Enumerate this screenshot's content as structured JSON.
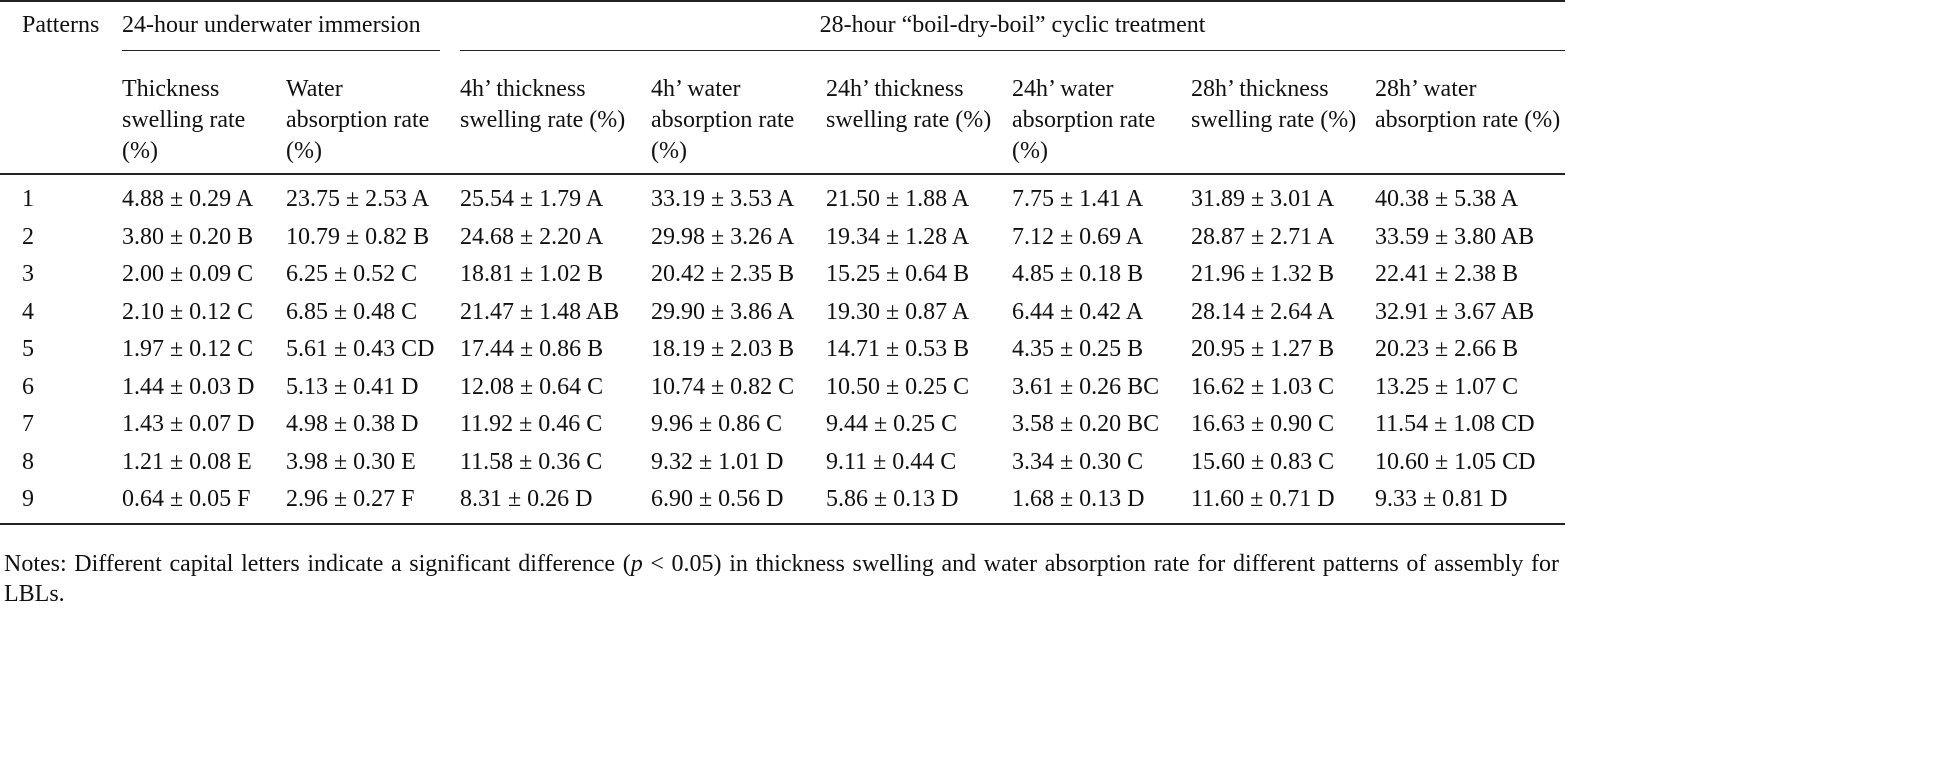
{
  "header": {
    "patterns": "Patterns",
    "groups": [
      "24-hour underwater immersion",
      "28-hour “boil-dry-boil” cyclic treatment"
    ],
    "columns": [
      "Thickness swelling rate (%)",
      "Water absorption rate (%)",
      "4h’ thickness swelling rate (%)",
      "4h’ water absorption rate (%)",
      "24h’ thickness swelling rate (%)",
      "24h’ water absorption rate (%)",
      "28h’ thickness swelling rate (%)",
      "28h’ water absorption rate (%)"
    ]
  },
  "table": {
    "rows": [
      [
        "1",
        "4.88 ± 0.29 A",
        "23.75 ± 2.53 A",
        "25.54 ± 1.79 A",
        "33.19 ± 3.53 A",
        "21.50 ± 1.88 A",
        "7.75 ± 1.41 A",
        "31.89 ± 3.01 A",
        "40.38 ± 5.38 A"
      ],
      [
        "2",
        "3.80 ± 0.20 B",
        "10.79 ± 0.82 B",
        "24.68 ± 2.20 A",
        "29.98 ± 3.26 A",
        "19.34 ± 1.28 A",
        "7.12 ± 0.69 A",
        "28.87 ± 2.71 A",
        "33.59 ± 3.80 AB"
      ],
      [
        "3",
        "2.00 ± 0.09 C",
        "6.25 ± 0.52 C",
        "18.81 ± 1.02 B",
        "20.42 ± 2.35 B",
        "15.25 ± 0.64 B",
        "4.85 ± 0.18 B",
        "21.96 ± 1.32 B",
        "22.41 ± 2.38 B"
      ],
      [
        "4",
        "2.10 ± 0.12 C",
        "6.85 ± 0.48 C",
        "21.47 ± 1.48 AB",
        "29.90 ± 3.86 A",
        "19.30 ± 0.87 A",
        "6.44 ± 0.42 A",
        "28.14 ± 2.64 A",
        "32.91 ± 3.67 AB"
      ],
      [
        "5",
        "1.97 ± 0.12 C",
        "5.61 ± 0.43 CD",
        "17.44 ± 0.86 B",
        "18.19 ± 2.03 B",
        "14.71 ± 0.53 B",
        "4.35 ± 0.25 B",
        "20.95 ± 1.27 B",
        "20.23 ± 2.66 B"
      ],
      [
        "6",
        "1.44 ± 0.03 D",
        "5.13 ± 0.41 D",
        "12.08 ± 0.64 C",
        "10.74 ± 0.82 C",
        "10.50 ± 0.25 C",
        "3.61 ± 0.26 BC",
        "16.62 ± 1.03 C",
        "13.25 ± 1.07 C"
      ],
      [
        "7",
        "1.43 ± 0.07 D",
        "4.98 ± 0.38 D",
        "11.92 ± 0.46 C",
        "9.96 ± 0.86 C",
        "9.44 ± 0.25 C",
        "3.58 ± 0.20 BC",
        "16.63 ± 0.90 C",
        "11.54 ± 1.08 CD"
      ],
      [
        "8",
        "1.21 ± 0.08 E",
        "3.98 ± 0.30 E",
        "11.58 ± 0.36 C",
        "9.32 ± 1.01 D",
        "9.11 ± 0.44 C",
        "3.34 ± 0.30 C",
        "15.60 ± 0.83 C",
        "10.60 ± 1.05 CD"
      ],
      [
        "9",
        "0.64 ± 0.05 F",
        "2.96 ± 0.27 F",
        "8.31 ± 0.26 D",
        "6.90 ± 0.56 D",
        "5.86 ± 0.13 D",
        "1.68 ± 0.13 D",
        "11.60 ± 0.71 D",
        "9.33 ± 0.81 D"
      ]
    ]
  },
  "notes": [
    "Notes: Different capital letters indicate a significant difference (",
    "p",
    " < 0.05) in thickness swelling and water absorption rate for different patterns of assembly for LBLs."
  ]
}
